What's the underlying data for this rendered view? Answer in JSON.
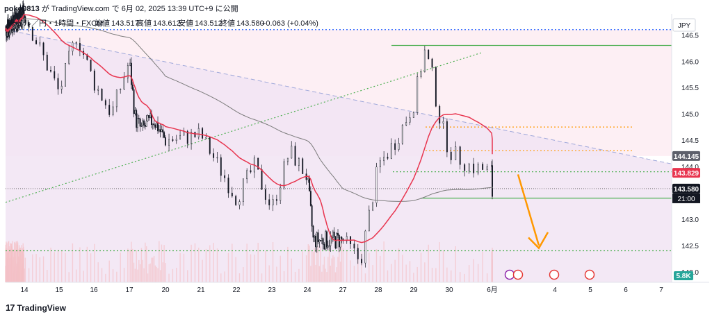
{
  "header": {
    "user": "poko0813",
    "ga": "が",
    "site": "TradingView.com",
    "de": "で",
    "date": "6月 02, 2025 13:39 UTC+9",
    "published": "に公開"
  },
  "legend": {
    "symbol": "米ドル／円・1時間・FXCM",
    "open_label": "始値",
    "open": "143.517",
    "high_label": "高値",
    "high": "143.612",
    "low_label": "安値",
    "low": "143.512",
    "close_label": "終値",
    "close": "143.580",
    "change": "+0.063 (+0.04%)"
  },
  "footer": {
    "brand": "TradingView"
  },
  "colors": {
    "candle": "#131722",
    "ma_fast": "#e8344e",
    "ma_slow": "#7b7b7b",
    "green_line": "#4caf50",
    "blue_dotted": "#2962ff",
    "orange": "#ff9800",
    "resistance_band": "#fce4ec",
    "lower_band": "#f1e4f3",
    "volume": "#f4c2c8"
  },
  "chart_data": {
    "type": "candlestick",
    "currency": "JPY",
    "ylim": [
      141.8,
      146.9
    ],
    "y_ticks": [
      142.0,
      142.5,
      143.0,
      143.5,
      144.0,
      144.5,
      145.0,
      145.5,
      146.0,
      146.5
    ],
    "x_ticks": [
      "14",
      "15",
      "16",
      "17",
      "20",
      "21",
      "22",
      "23",
      "24",
      "27",
      "28",
      "29",
      "30",
      "6月",
      "4",
      "5",
      "6",
      "7"
    ],
    "price_path": [
      [
        0,
        146.6
      ],
      [
        14,
        146.9
      ],
      [
        15,
        145.4
      ],
      [
        15.5,
        146.5
      ],
      [
        16,
        145.6
      ],
      [
        16.5,
        145.0
      ],
      [
        17,
        146.0
      ],
      [
        17.5,
        144.9
      ],
      [
        18,
        144.7
      ],
      [
        19,
        144.9
      ],
      [
        20,
        144.5
      ],
      [
        21,
        144.6
      ],
      [
        22,
        143.4
      ],
      [
        22.5,
        144.0
      ],
      [
        23,
        143.2
      ],
      [
        23.5,
        144.3
      ],
      [
        24,
        143.8
      ],
      [
        24.5,
        142.6
      ],
      [
        27,
        142.6
      ],
      [
        27.5,
        142.2
      ],
      [
        28,
        144.0
      ],
      [
        28.5,
        144.5
      ],
      [
        29,
        145.2
      ],
      [
        29.3,
        146.2
      ],
      [
        29.5,
        145.8
      ],
      [
        29.7,
        145.0
      ],
      [
        30,
        144.3
      ],
      [
        30.5,
        144.0
      ],
      [
        31,
        143.9
      ],
      [
        31.3,
        143.6
      ]
    ],
    "annotations": {
      "resistance_top": 146.3,
      "blue_dotted_level": 146.6,
      "orange_level_1": 144.75,
      "orange_level_2": 144.3,
      "green_dotted_level": 143.9,
      "support": 143.4,
      "lower_green_dotted": 142.4,
      "ma_value": "143.829",
      "slow_ma_value": "144.145",
      "last_price": "143.580",
      "countdown": "21:00",
      "volume": "5.8K"
    }
  }
}
